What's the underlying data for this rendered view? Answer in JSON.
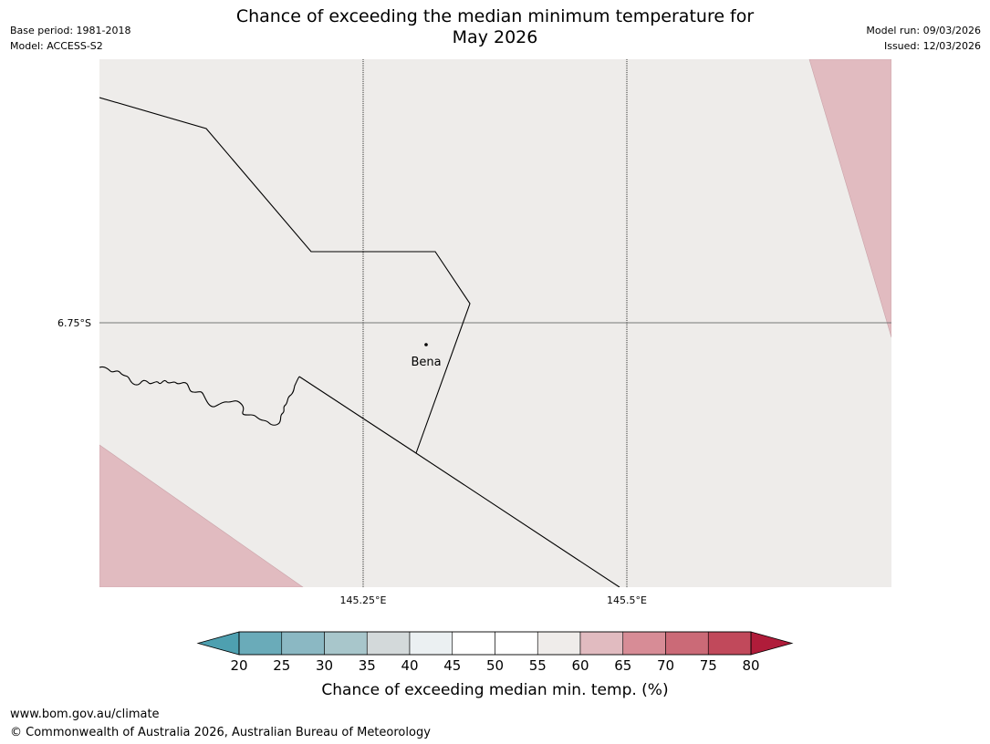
{
  "header": {
    "title_line1": "Chance of exceeding the median minimum temperature for",
    "title_line2": "May 2026",
    "base_period": "Base period: 1981-2018",
    "model": "Model: ACCESS-S2",
    "model_run": "Model run: 09/03/2026",
    "issued": "Issued: 12/03/2026"
  },
  "map": {
    "background_color": "#eeecea",
    "high_probability_color": "#e1bbc0",
    "latitude_labels": [
      "6.75°S"
    ],
    "longitude_labels": [
      "145.25°E",
      "145.5°E"
    ],
    "places": [
      {
        "name": "Bena"
      }
    ]
  },
  "colorbar": {
    "label": "Chance of exceeding median min. temp. (%)",
    "ticks": [
      "20",
      "25",
      "30",
      "35",
      "40",
      "45",
      "50",
      "55",
      "60",
      "65",
      "70",
      "75",
      "80"
    ],
    "under_color": "#4ea0b0",
    "over_color": "#b01c3a",
    "colors": [
      "#6aabb9",
      "#8bb8c3",
      "#a8c6cb",
      "#d3d9da",
      "#ebf0f2",
      "#ffffff",
      "#ffffff",
      "#efecea",
      "#e1bbc0",
      "#d78c96",
      "#cb6a77",
      "#c1495b"
    ]
  },
  "footer": {
    "website": "www.bom.gov.au/climate",
    "copyright": "© Commonwealth of Australia 2026, Australian Bureau of Meteorology"
  }
}
